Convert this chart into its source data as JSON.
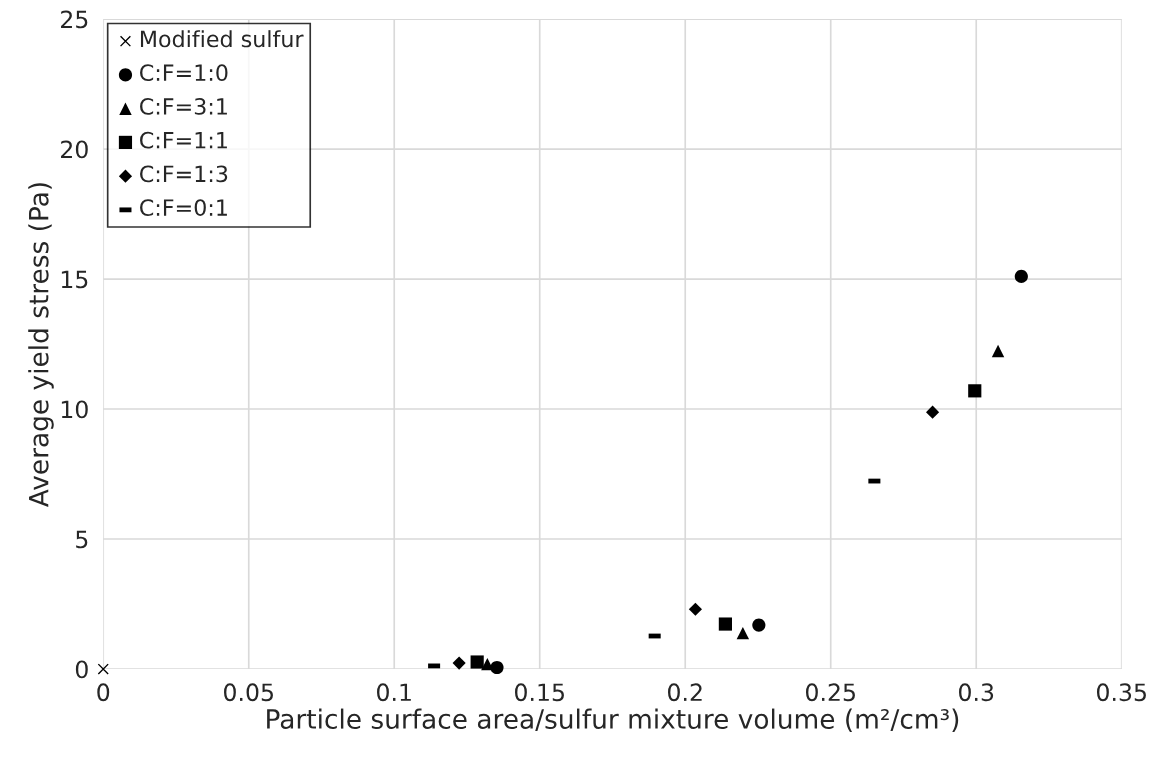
{
  "chart_data": {
    "type": "scatter",
    "xlabel": "Particle surface area/sulfur mixture volume (m²/cm³)",
    "ylabel": "Average yield stress (Pa)",
    "xlim": [
      0,
      0.35
    ],
    "xticks": [
      0,
      0.05,
      0.1,
      0.15,
      0.2,
      0.25,
      0.3,
      0.35
    ],
    "ylim": [
      0,
      25
    ],
    "yticks": [
      0,
      5,
      10,
      15,
      20,
      25
    ],
    "grid": true,
    "legend": "top left",
    "series": [
      {
        "name": "Modified sulfur",
        "color": "#000000",
        "marker": "cross",
        "x": [
          0
        ],
        "values": [
          0
        ]
      },
      {
        "name": "C:F=1:0",
        "color": "#000000",
        "marker": "circle",
        "x": [
          0.1353,
          0.2253,
          0.3155
        ],
        "values": [
          0.06,
          1.69,
          15.1
        ]
      },
      {
        "name": "C:F=3:1",
        "color": "#000000",
        "marker": "triangle",
        "x": [
          0.132,
          0.2198,
          0.3075
        ],
        "values": [
          0.19,
          1.38,
          12.23
        ]
      },
      {
        "name": "C:F=1:1",
        "color": "#000000",
        "marker": "square",
        "x": [
          0.1285,
          0.2138,
          0.2995
        ],
        "values": [
          0.27,
          1.73,
          10.7
        ]
      },
      {
        "name": "C:F=1:3",
        "color": "#000000",
        "marker": "diamond",
        "x": [
          0.1223,
          0.2035,
          0.285
        ],
        "values": [
          0.23,
          2.3,
          9.88
        ]
      },
      {
        "name": "C:F=0:1",
        "color": "#000000",
        "x": [
          0.1137,
          0.1895,
          0.265
        ],
        "values": [
          0.12,
          1.27,
          7.23
        ]
      }
    ]
  }
}
